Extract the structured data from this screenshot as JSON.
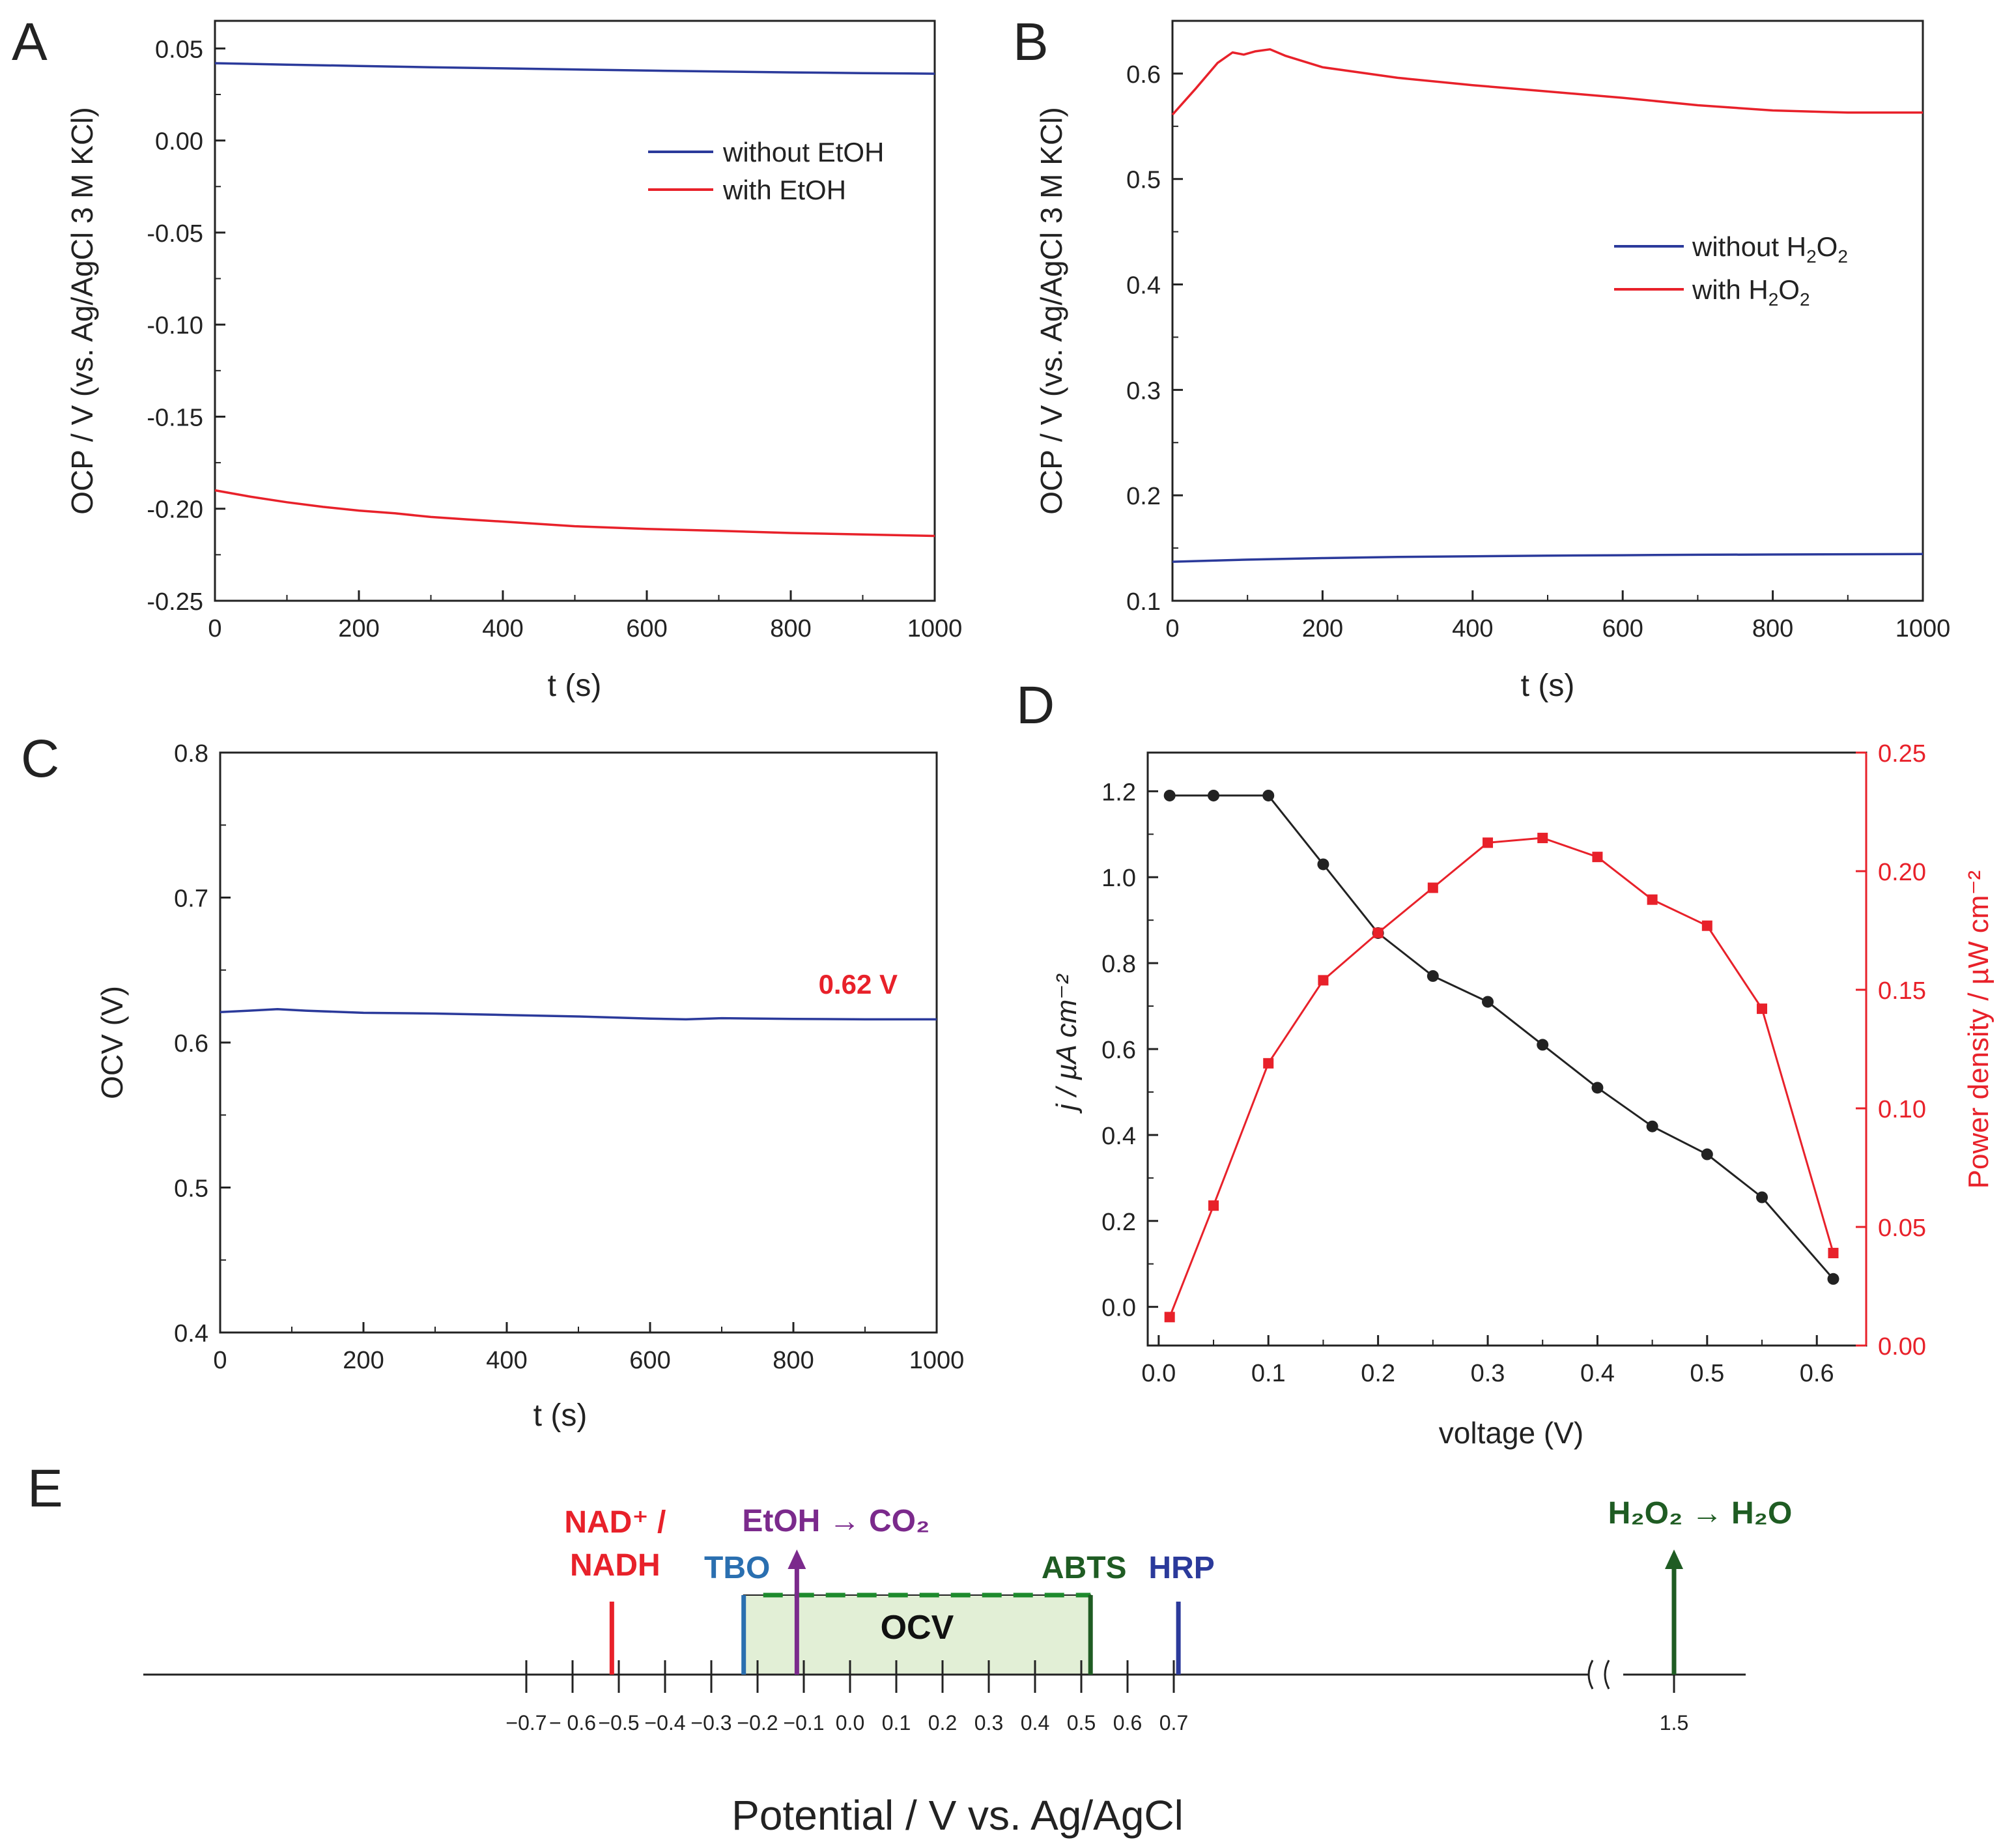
{
  "colors": {
    "blue": "#2b3a9b",
    "red": "#e8212a",
    "black": "#222222",
    "purple": "#7b2a8c",
    "darkgreen": "#1f5c23",
    "ocvGreen": "#1d8a2c",
    "ocvFill": "#e2efd6",
    "teal": "#2a6fb0"
  },
  "chart_data": [
    {
      "panel": "A",
      "type": "line",
      "panel_label": "A",
      "xlabel": "t (s)",
      "ylabel": "OCP / V (vs. Ag/AgCl 3 M KCl)",
      "xlim": [
        0,
        1000
      ],
      "ylim": [
        -0.25,
        0.065
      ],
      "xticks": [
        0,
        200,
        400,
        600,
        800,
        1000
      ],
      "yticks": [
        -0.25,
        -0.2,
        -0.15,
        -0.1,
        -0.05,
        0.0,
        0.05
      ],
      "ytick_labels": [
        "-0.25",
        "-0.20",
        "-0.15",
        "-0.10",
        "-0.05",
        "0.00",
        "0.05"
      ],
      "legend_position": "top-right",
      "series": [
        {
          "name": "without EtOH",
          "color": "blue",
          "x": [
            0,
            100,
            200,
            300,
            400,
            500,
            600,
            700,
            800,
            900,
            1000
          ],
          "y": [
            0.042,
            0.0412,
            0.0405,
            0.0398,
            0.0392,
            0.0386,
            0.038,
            0.0375,
            0.037,
            0.0366,
            0.0363
          ]
        },
        {
          "name": "with EtOH",
          "color": "red",
          "x": [
            0,
            50,
            100,
            150,
            200,
            250,
            300,
            350,
            400,
            500,
            600,
            700,
            800,
            900,
            1000
          ],
          "y": [
            -0.19,
            -0.1935,
            -0.1965,
            -0.199,
            -0.201,
            -0.2025,
            -0.2045,
            -0.2058,
            -0.207,
            -0.2095,
            -0.211,
            -0.212,
            -0.2132,
            -0.214,
            -0.2148
          ]
        }
      ]
    },
    {
      "panel": "B",
      "type": "line",
      "panel_label": "B",
      "xlabel": "t (s)",
      "ylabel": "OCP / V (vs. Ag/AgCl 3 M KCl)",
      "xlim": [
        0,
        1000
      ],
      "ylim": [
        0.1,
        0.65
      ],
      "xticks": [
        0,
        200,
        400,
        600,
        800,
        1000
      ],
      "yticks": [
        0.1,
        0.2,
        0.3,
        0.4,
        0.5,
        0.6
      ],
      "ytick_labels": [
        "0.1",
        "0.2",
        "0.3",
        "0.4",
        "0.5",
        "0.6"
      ],
      "legend_position": "center-right",
      "series": [
        {
          "name": "without H2O2",
          "color": "blue",
          "x": [
            0,
            100,
            200,
            300,
            400,
            500,
            600,
            700,
            800,
            900,
            1000
          ],
          "y": [
            0.137,
            0.139,
            0.1405,
            0.1415,
            0.1422,
            0.1428,
            0.1432,
            0.1436,
            0.1439,
            0.1441,
            0.1443
          ]
        },
        {
          "name": "with H2O2",
          "color": "red",
          "x": [
            0,
            30,
            60,
            80,
            95,
            110,
            130,
            150,
            200,
            300,
            400,
            500,
            600,
            700,
            800,
            900,
            1000
          ],
          "y": [
            0.561,
            0.585,
            0.61,
            0.62,
            0.618,
            0.621,
            0.623,
            0.617,
            0.606,
            0.596,
            0.589,
            0.583,
            0.577,
            0.57,
            0.565,
            0.563,
            0.563
          ]
        }
      ]
    },
    {
      "panel": "C",
      "type": "line",
      "panel_label": "C",
      "xlabel": "t (s)",
      "ylabel": "OCV (V)",
      "xlim": [
        0,
        1000
      ],
      "ylim": [
        0.4,
        0.8
      ],
      "xticks": [
        0,
        200,
        400,
        600,
        800,
        1000
      ],
      "yticks": [
        0.4,
        0.5,
        0.6,
        0.7,
        0.8
      ],
      "ytick_labels": [
        "0.4",
        "0.5",
        "0.6",
        "0.7",
        "0.8"
      ],
      "annotation": "0.62 V",
      "series": [
        {
          "name": "OCV",
          "color": "blue",
          "x": [
            0,
            40,
            80,
            120,
            200,
            300,
            400,
            500,
            600,
            650,
            700,
            800,
            900,
            1000
          ],
          "y": [
            0.621,
            0.622,
            0.623,
            0.622,
            0.6205,
            0.62,
            0.619,
            0.618,
            0.6165,
            0.616,
            0.6168,
            0.6163,
            0.616,
            0.616
          ]
        }
      ]
    },
    {
      "panel": "D",
      "type": "line",
      "panel_label": "D",
      "xlabel": "voltage (V)",
      "ylabel": "j / µA cm⁻²",
      "y2label": "Power density / µW cm⁻²",
      "xlim": [
        -0.01,
        0.645
      ],
      "ylim": [
        -0.09,
        1.29
      ],
      "y2lim": [
        0.0,
        0.25
      ],
      "xticks": [
        0.0,
        0.1,
        0.2,
        0.3,
        0.4,
        0.5,
        0.6
      ],
      "yticks": [
        0.0,
        0.2,
        0.4,
        0.6,
        0.8,
        1.0,
        1.2
      ],
      "y2ticks": [
        0.0,
        0.05,
        0.1,
        0.15,
        0.2,
        0.25
      ],
      "series": [
        {
          "name": "current density",
          "axis": "left",
          "color": "black",
          "marker": "circle",
          "x": [
            0.01,
            0.05,
            0.1,
            0.15,
            0.2,
            0.25,
            0.3,
            0.35,
            0.4,
            0.45,
            0.5,
            0.55,
            0.615
          ],
          "y": [
            1.19,
            1.19,
            1.19,
            1.03,
            0.87,
            0.77,
            0.71,
            0.61,
            0.51,
            0.42,
            0.355,
            0.255,
            0.065
          ]
        },
        {
          "name": "power density",
          "axis": "right",
          "color": "red",
          "marker": "square",
          "x": [
            0.01,
            0.05,
            0.1,
            0.15,
            0.2,
            0.25,
            0.3,
            0.35,
            0.4,
            0.45,
            0.5,
            0.55,
            0.615
          ],
          "y": [
            0.012,
            0.059,
            0.119,
            0.154,
            0.174,
            0.193,
            0.212,
            0.214,
            0.206,
            0.188,
            0.177,
            0.142,
            0.039
          ]
        }
      ]
    }
  ],
  "panel_e": {
    "panel_label": "E",
    "axis_title": "Potential / V vs. Ag/AgCl",
    "ticks": [
      -0.7,
      -0.6,
      -0.5,
      -0.4,
      -0.3,
      -0.2,
      -0.1,
      0.0,
      0.1,
      0.2,
      0.3,
      0.4,
      0.5,
      0.6,
      0.7
    ],
    "tick_labels": [
      "−0.7",
      "− 0.6",
      "−0.5",
      "−0.4",
      "−0.3",
      "−0.2",
      "−0.1",
      "0.0",
      "0.1",
      "0.2",
      "0.3",
      "0.4",
      "0.5",
      "0.6",
      "0.7"
    ],
    "break_tick": {
      "value": 1.5,
      "label": "1.5"
    },
    "ocv_window": {
      "from": -0.23,
      "to": 0.52,
      "label": "OCV"
    },
    "markers": [
      {
        "label_line1": "NAD⁺ /",
        "label_line2": "NADH",
        "value": -0.515,
        "color": "red",
        "kind": "bar"
      },
      {
        "label": "TBO",
        "value": -0.23,
        "color": "teal",
        "kind": "bar"
      },
      {
        "label": "EtOH → CO₂",
        "value": -0.115,
        "color": "purple",
        "kind": "arrow"
      },
      {
        "label": "ABTS",
        "value": 0.52,
        "color": "darkgreen",
        "kind": "bar"
      },
      {
        "label": "HRP",
        "value": 0.71,
        "color": "blue",
        "kind": "bar"
      },
      {
        "label": "H₂O₂ → H₂O",
        "value": 1.5,
        "color": "darkgreen",
        "kind": "arrow"
      }
    ]
  }
}
